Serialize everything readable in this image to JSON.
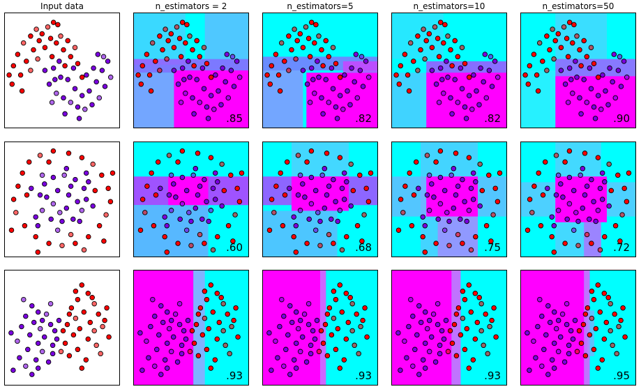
{
  "figure": {
    "column_titles": [
      "Input data",
      "n_estimators = 2",
      "n_estimators=5",
      "n_estimators=10",
      "n_estimators=50"
    ]
  },
  "colors": {
    "class_red": "#ff0000",
    "class_purple": "#7a00e0",
    "region_cyan": "#00ffff",
    "region_magenta": "#ff00ff"
  },
  "chart_data": [
    {
      "type": "scatter",
      "dataset": "moons",
      "description_rows": "Row 1",
      "xlim": [
        -1.5,
        2.5
      ],
      "ylim": [
        -1.0,
        1.5
      ],
      "scores": [
        ".85",
        ".82",
        ".82",
        ".90"
      ],
      "series": [
        {
          "name": "",
          "color": "#ff0000",
          "points": [
            [
              -1.2,
              0.35
            ],
            [
              -1.05,
              0.6
            ],
            [
              -0.95,
              0.15
            ],
            [
              -0.85,
              0.85
            ],
            [
              -0.75,
              0.45
            ],
            [
              -0.6,
              1.0
            ],
            [
              -0.5,
              0.7
            ],
            [
              -0.4,
              1.15
            ],
            [
              -0.3,
              0.9
            ],
            [
              -0.2,
              1.05
            ],
            [
              -0.1,
              0.75
            ],
            [
              0.0,
              1.2
            ],
            [
              0.1,
              0.95
            ],
            [
              0.2,
              1.3
            ],
            [
              0.3,
              0.85
            ],
            [
              0.45,
              1.0
            ],
            [
              0.55,
              0.7
            ],
            [
              0.7,
              0.9
            ],
            [
              0.8,
              0.55
            ],
            [
              0.95,
              0.75
            ],
            [
              1.05,
              0.4
            ],
            [
              -0.9,
              -0.2
            ],
            [
              -1.25,
              -0.05
            ],
            [
              -0.6,
              0.25
            ],
            [
              0.6,
              0.35
            ],
            [
              0.15,
              0.55
            ],
            [
              1.2,
              0.1
            ],
            [
              -0.35,
              0.5
            ],
            [
              0.35,
              1.25
            ],
            [
              -1.35,
              0.15
            ]
          ]
        },
        {
          "name": "",
          "color": "#7a00e0",
          "points": [
            [
              -0.1,
              0.25
            ],
            [
              0.05,
              -0.05
            ],
            [
              0.2,
              0.3
            ],
            [
              0.3,
              -0.25
            ],
            [
              0.45,
              0.1
            ],
            [
              0.55,
              -0.35
            ],
            [
              0.7,
              0.05
            ],
            [
              0.8,
              -0.45
            ],
            [
              0.95,
              -0.15
            ],
            [
              1.05,
              -0.55
            ],
            [
              1.2,
              -0.3
            ],
            [
              1.3,
              -0.6
            ],
            [
              1.45,
              -0.2
            ],
            [
              1.55,
              -0.5
            ],
            [
              1.7,
              0.0
            ],
            [
              1.8,
              -0.35
            ],
            [
              1.9,
              0.25
            ],
            [
              2.0,
              -0.1
            ],
            [
              2.1,
              0.45
            ],
            [
              0.15,
              -0.45
            ],
            [
              0.6,
              -0.7
            ],
            [
              1.1,
              -0.8
            ],
            [
              1.6,
              0.3
            ],
            [
              1.95,
              0.55
            ],
            [
              0.4,
              0.45
            ],
            [
              1.35,
              0.15
            ],
            [
              0.9,
              0.3
            ],
            [
              2.2,
              0.1
            ],
            [
              1.75,
              0.6
            ],
            [
              0.25,
              0.05
            ]
          ]
        }
      ]
    },
    {
      "type": "scatter",
      "dataset": "circles",
      "xlim": [
        -1.3,
        1.3
      ],
      "ylim": [
        -1.3,
        1.3
      ],
      "scores": [
        ".60",
        ".68",
        ".75",
        ".72"
      ],
      "series": [
        {
          "name": "",
          "color": "#ff0000",
          "points": [
            [
              -1.0,
              0.3
            ],
            [
              -0.9,
              0.6
            ],
            [
              -0.75,
              0.85
            ],
            [
              -0.5,
              1.0
            ],
            [
              -0.2,
              1.1
            ],
            [
              0.15,
              1.05
            ],
            [
              0.45,
              0.95
            ],
            [
              0.7,
              0.8
            ],
            [
              0.9,
              0.55
            ],
            [
              1.05,
              0.25
            ],
            [
              1.1,
              -0.05
            ],
            [
              1.0,
              -0.35
            ],
            [
              0.85,
              -0.6
            ],
            [
              0.6,
              -0.85
            ],
            [
              0.3,
              -1.0
            ],
            [
              0.0,
              -1.05
            ],
            [
              -0.3,
              -1.0
            ],
            [
              -0.6,
              -0.85
            ],
            [
              -0.85,
              -0.6
            ],
            [
              -1.05,
              -0.3
            ],
            [
              -1.1,
              0.0
            ],
            [
              -0.8,
              0.1
            ],
            [
              0.75,
              0.2
            ],
            [
              0.2,
              -0.8
            ],
            [
              -0.3,
              0.85
            ],
            [
              1.15,
              0.6
            ],
            [
              -1.15,
              -0.7
            ],
            [
              0.5,
              -1.15
            ],
            [
              -0.55,
              -1.2
            ],
            [
              0.95,
              -0.95
            ]
          ]
        },
        {
          "name": "",
          "color": "#7a00e0",
          "points": [
            [
              -0.5,
              0.1
            ],
            [
              -0.4,
              0.35
            ],
            [
              -0.2,
              0.5
            ],
            [
              0.05,
              0.55
            ],
            [
              0.3,
              0.45
            ],
            [
              0.5,
              0.25
            ],
            [
              0.55,
              0.0
            ],
            [
              0.45,
              -0.25
            ],
            [
              0.25,
              -0.45
            ],
            [
              0.0,
              -0.5
            ],
            [
              -0.25,
              -0.45
            ],
            [
              -0.45,
              -0.25
            ],
            [
              -0.1,
              0.2
            ],
            [
              0.15,
              0.1
            ],
            [
              0.1,
              -0.2
            ],
            [
              -0.2,
              -0.1
            ],
            [
              0.35,
              -0.05
            ],
            [
              -0.35,
              0.05
            ],
            [
              0.2,
              0.3
            ],
            [
              -0.05,
              -0.3
            ],
            [
              0.6,
              0.4
            ],
            [
              -0.6,
              -0.4
            ],
            [
              0.4,
              -0.5
            ],
            [
              -0.45,
              0.55
            ],
            [
              0.7,
              -0.15
            ],
            [
              -0.7,
              0.25
            ],
            [
              0.1,
              0.7
            ],
            [
              -0.1,
              -0.7
            ],
            [
              0.55,
              0.6
            ],
            [
              -0.55,
              -0.6
            ]
          ]
        }
      ]
    },
    {
      "type": "scatter",
      "dataset": "linearly_separable",
      "xlim": [
        -2.5,
        3.0
      ],
      "ylim": [
        -2.5,
        3.0
      ],
      "scores": [
        ".93",
        ".93",
        ".93",
        ".95"
      ],
      "series": [
        {
          "name": "",
          "color": "#ff0000",
          "points": [
            [
              1.2,
              2.3
            ],
            [
              1.5,
              1.9
            ],
            [
              1.0,
              1.6
            ],
            [
              1.8,
              1.4
            ],
            [
              0.7,
              1.2
            ],
            [
              1.3,
              1.0
            ],
            [
              2.0,
              0.9
            ],
            [
              0.9,
              0.7
            ],
            [
              1.6,
              0.5
            ],
            [
              0.5,
              0.4
            ],
            [
              1.1,
              0.2
            ],
            [
              2.2,
              0.3
            ],
            [
              0.8,
              -0.1
            ],
            [
              1.5,
              -0.3
            ],
            [
              0.4,
              -0.5
            ],
            [
              1.9,
              -0.6
            ],
            [
              1.0,
              -0.8
            ],
            [
              0.6,
              -1.1
            ],
            [
              1.4,
              -1.3
            ],
            [
              2.1,
              -1.0
            ],
            [
              0.3,
              0.1
            ],
            [
              1.7,
              1.7
            ],
            [
              2.4,
              1.2
            ],
            [
              0.2,
              -0.9
            ],
            [
              1.2,
              -1.7
            ],
            [
              2.5,
              -0.2
            ],
            [
              0.9,
              2.0
            ],
            [
              1.8,
              0.1
            ],
            [
              0.6,
              0.9
            ],
            [
              2.3,
              0.6
            ]
          ]
        },
        {
          "name": "",
          "color": "#7a00e0",
          "points": [
            [
              -1.2,
              1.3
            ],
            [
              -0.9,
              1.0
            ],
            [
              -1.5,
              0.8
            ],
            [
              -0.5,
              0.9
            ],
            [
              -1.1,
              0.5
            ],
            [
              -0.3,
              0.4
            ],
            [
              -1.7,
              0.3
            ],
            [
              -0.8,
              0.2
            ],
            [
              -0.1,
              0.1
            ],
            [
              -1.3,
              -0.1
            ],
            [
              -0.6,
              -0.2
            ],
            [
              -1.9,
              -0.4
            ],
            [
              -0.9,
              -0.5
            ],
            [
              -0.2,
              -0.6
            ],
            [
              -1.4,
              -0.8
            ],
            [
              -0.7,
              -0.9
            ],
            [
              -1.8,
              -1.2
            ],
            [
              -1.0,
              -1.3
            ],
            [
              -0.4,
              -1.4
            ],
            [
              -1.5,
              -1.6
            ],
            [
              -0.2,
              -1.0
            ],
            [
              -2.1,
              -1.8
            ],
            [
              -0.7,
              0.6
            ],
            [
              -1.6,
              1.6
            ],
            [
              0.0,
              -0.3
            ],
            [
              -2.2,
              0.0
            ],
            [
              -1.2,
              -2.0
            ],
            [
              -0.3,
              1.4
            ],
            [
              0.1,
              0.6
            ],
            [
              -0.9,
              -1.7
            ]
          ]
        }
      ]
    }
  ]
}
